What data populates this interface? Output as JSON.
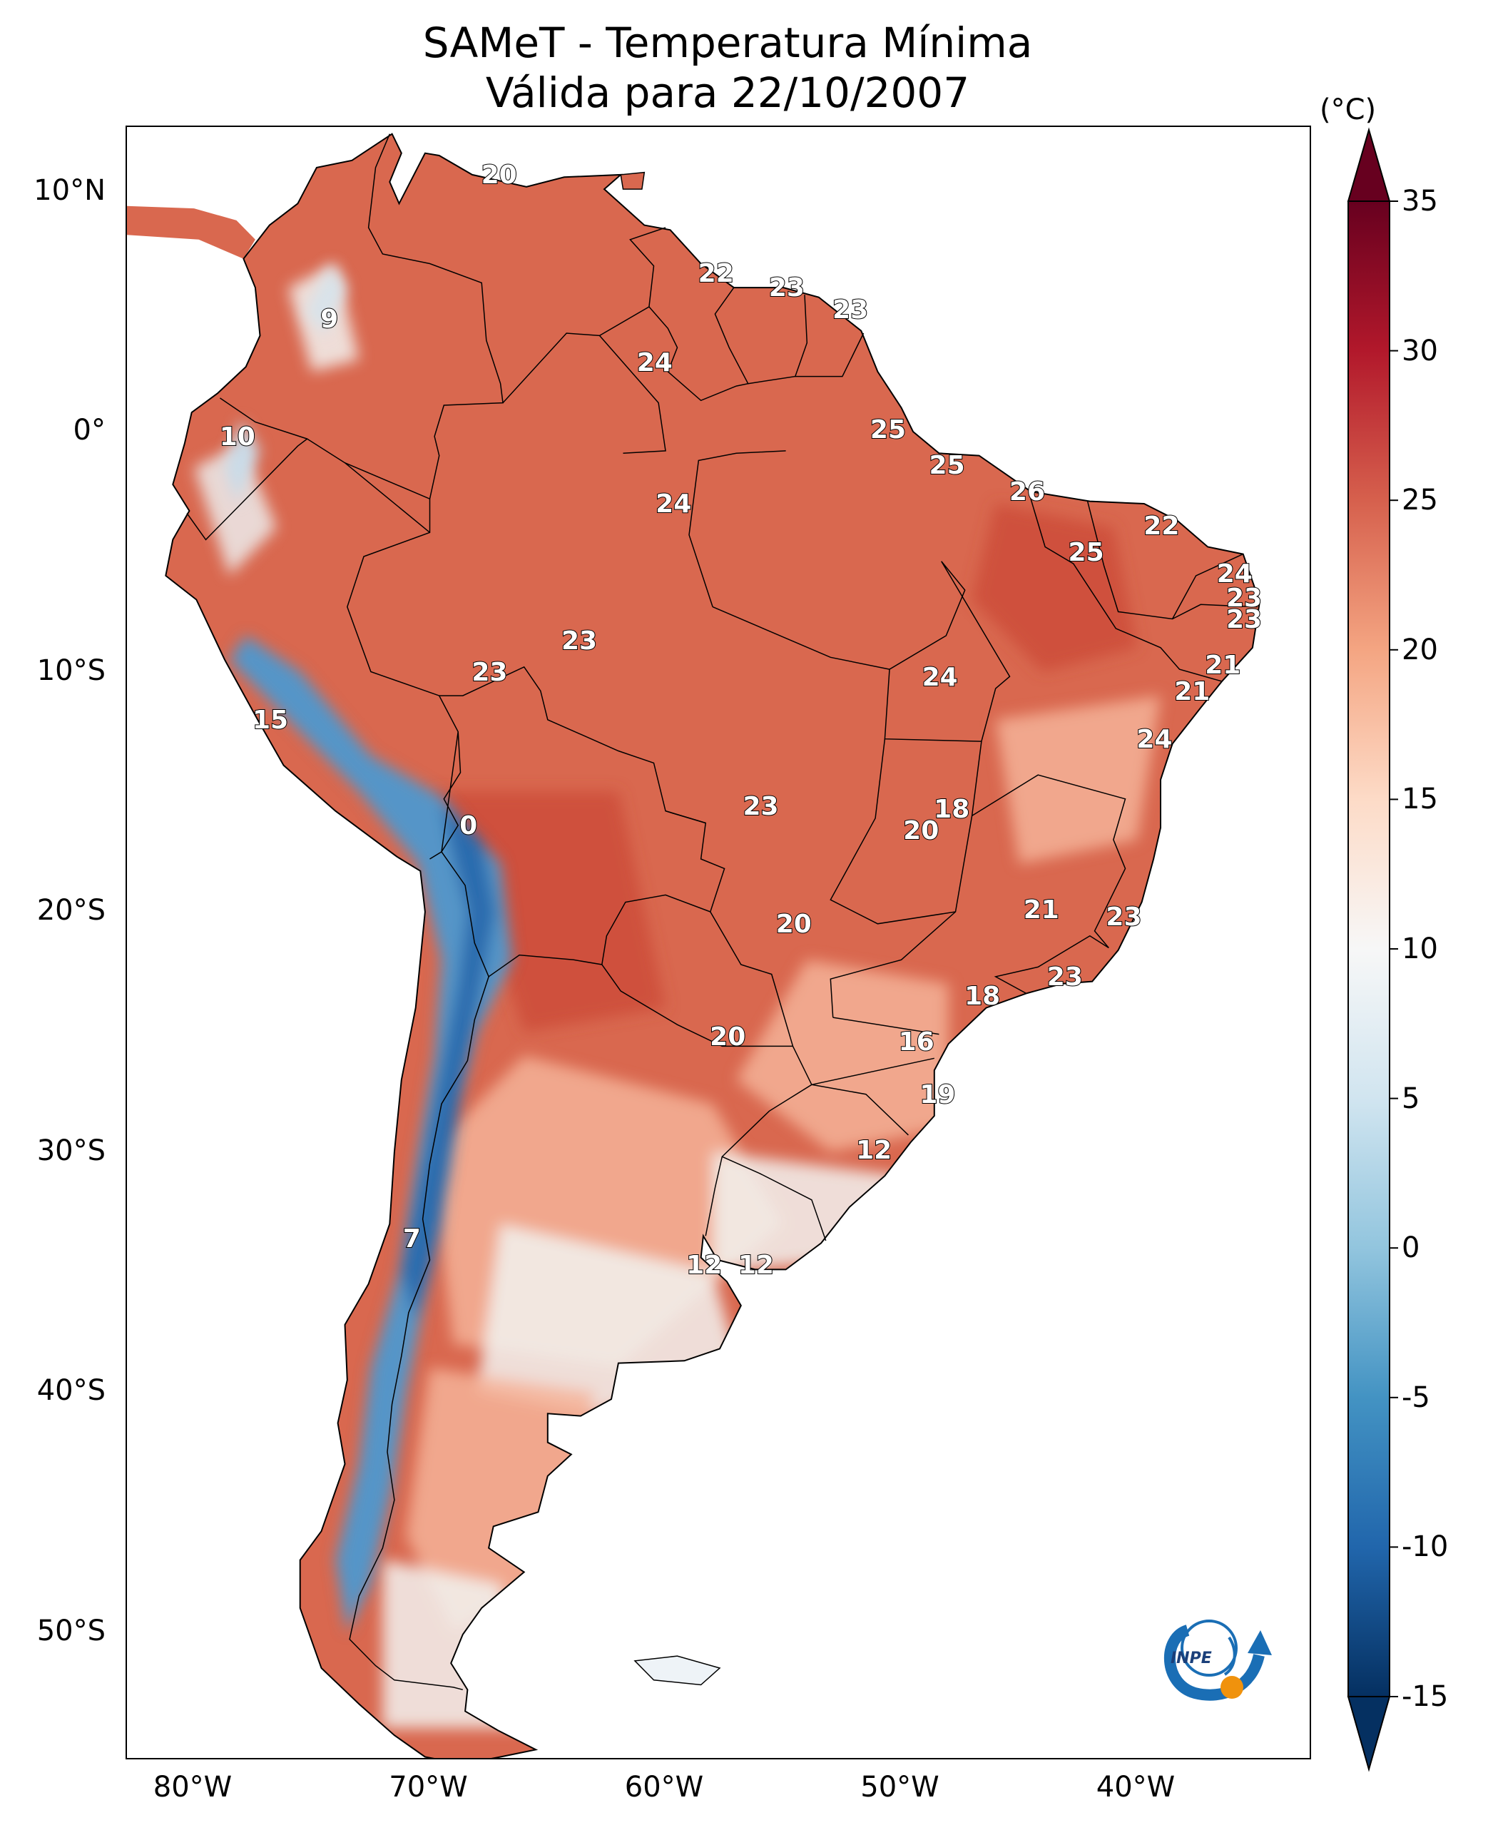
{
  "title": {
    "line1": "SAMeT - Temperatura Mínima",
    "line2": "Válida para 22/10/2007"
  },
  "map": {
    "region": "South America",
    "lat_ticks": [
      "10°N",
      "0°",
      "10°S",
      "20°S",
      "30°S",
      "40°S",
      "50°S"
    ],
    "lon_ticks": [
      "80°W",
      "70°W",
      "60°W",
      "50°W",
      "40°W"
    ],
    "value_labels": [
      {
        "text": "20",
        "lon": -67.0,
        "lat": 10.6
      },
      {
        "text": "9",
        "lon": -74.2,
        "lat": 4.6
      },
      {
        "text": "22",
        "lon": -57.8,
        "lat": 6.5
      },
      {
        "text": "23",
        "lon": -54.8,
        "lat": 5.9
      },
      {
        "text": "23",
        "lon": -52.1,
        "lat": 5.0
      },
      {
        "text": "24",
        "lon": -60.4,
        "lat": 2.8
      },
      {
        "text": "10",
        "lon": -78.1,
        "lat": -0.3
      },
      {
        "text": "25",
        "lon": -50.5,
        "lat": 0.0
      },
      {
        "text": "25",
        "lon": -48.0,
        "lat": -1.5
      },
      {
        "text": "26",
        "lon": -44.6,
        "lat": -2.6
      },
      {
        "text": "22",
        "lon": -38.9,
        "lat": -4.0
      },
      {
        "text": "24",
        "lon": -59.6,
        "lat": -3.1
      },
      {
        "text": "25",
        "lon": -42.1,
        "lat": -5.1
      },
      {
        "text": "24",
        "lon": -35.8,
        "lat": -6.0
      },
      {
        "text": "23",
        "lon": -35.4,
        "lat": -7.0
      },
      {
        "text": "23",
        "lon": -35.4,
        "lat": -7.9
      },
      {
        "text": "23",
        "lon": -63.6,
        "lat": -8.8
      },
      {
        "text": "23",
        "lon": -67.4,
        "lat": -10.1
      },
      {
        "text": "21",
        "lon": -36.3,
        "lat": -9.8
      },
      {
        "text": "24",
        "lon": -48.3,
        "lat": -10.3
      },
      {
        "text": "21",
        "lon": -37.6,
        "lat": -10.9
      },
      {
        "text": "15",
        "lon": -76.7,
        "lat": -12.1
      },
      {
        "text": "24",
        "lon": -39.2,
        "lat": -12.9
      },
      {
        "text": "18",
        "lon": -47.8,
        "lat": -15.8
      },
      {
        "text": "23",
        "lon": -55.9,
        "lat": -15.7
      },
      {
        "text": "0",
        "lon": -68.3,
        "lat": -16.5
      },
      {
        "text": "20",
        "lon": -49.1,
        "lat": -16.7
      },
      {
        "text": "21",
        "lon": -44.0,
        "lat": -20.0
      },
      {
        "text": "23",
        "lon": -40.5,
        "lat": -20.3
      },
      {
        "text": "20",
        "lon": -54.5,
        "lat": -20.6
      },
      {
        "text": "23",
        "lon": -43.0,
        "lat": -22.8
      },
      {
        "text": "18",
        "lon": -46.5,
        "lat": -23.6
      },
      {
        "text": "20",
        "lon": -57.3,
        "lat": -25.3
      },
      {
        "text": "16",
        "lon": -49.3,
        "lat": -25.5
      },
      {
        "text": "19",
        "lon": -48.4,
        "lat": -27.7
      },
      {
        "text": "12",
        "lon": -51.1,
        "lat": -30.0
      },
      {
        "text": "7",
        "lon": -70.7,
        "lat": -33.7
      },
      {
        "text": "12",
        "lon": -58.3,
        "lat": -34.8
      },
      {
        "text": "12",
        "lon": -56.1,
        "lat": -34.8
      }
    ]
  },
  "colorbar": {
    "unit": "(°C)",
    "ticks": [
      "35",
      "30",
      "25",
      "20",
      "15",
      "10",
      "5",
      "0",
      "-5",
      "-10",
      "-15"
    ],
    "min": -15,
    "max": 35,
    "step": 2.5,
    "colors": [
      "#053061",
      "#2166ac",
      "#4393c3",
      "#92c5de",
      "#d1e5f0",
      "#f7f7f7",
      "#fddbc7",
      "#f4a582",
      "#d6604d",
      "#b2182b",
      "#67001f"
    ]
  },
  "logo": {
    "text": "INPE"
  },
  "colors": {
    "ocean": "#ffffff",
    "land_warm": "#d9684f",
    "land_hot": "#cc4d3a",
    "land_mild": "#f4b398",
    "land_cool": "#f2f2f0",
    "andes_cold": "#5595c8",
    "andes_deep": "#2a6cae",
    "border": "#000000"
  }
}
